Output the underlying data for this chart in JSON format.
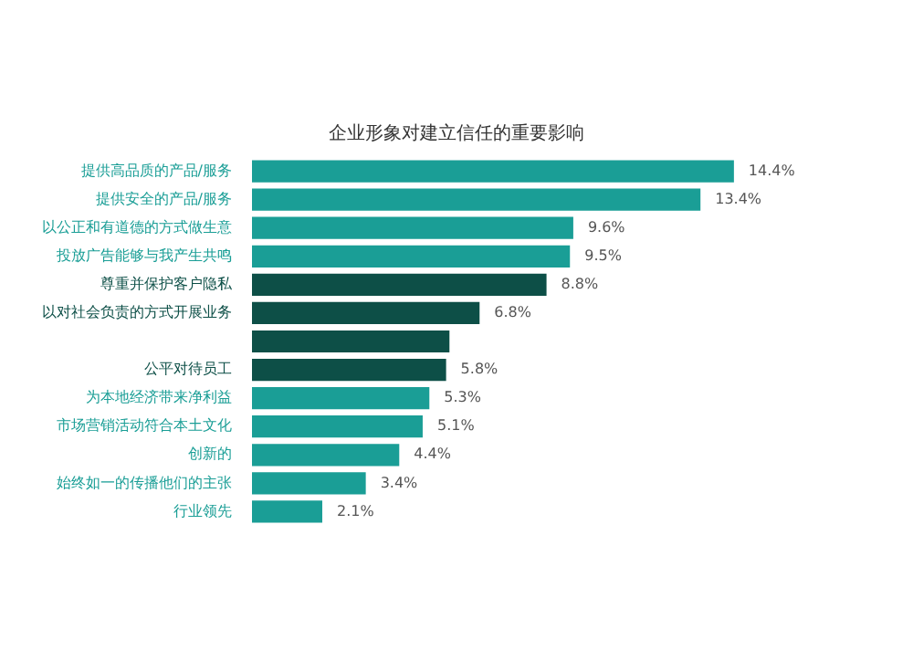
{
  "chart_data": {
    "type": "bar",
    "orientation": "horizontal",
    "title": "企业形象对建立信任的重要影响",
    "categories": [
      "提供高品质的产品/服务",
      "提供安全的产品/服务",
      "以公正和有道德的方式做生意",
      "投放广告能够与我产生共鸣",
      "尊重并保护客户隐私",
      "以对社会负责的方式开展业务",
      null,
      "公平对待员工",
      "为本地经济带来净利益",
      "市场营销活动符合本土文化",
      "创新的",
      "始终如一的传播他们的主张",
      "行业领先"
    ],
    "values": [
      14.4,
      13.4,
      9.6,
      9.5,
      8.8,
      6.8,
      5.9,
      5.8,
      5.3,
      5.1,
      4.4,
      3.4,
      2.1
    ],
    "colors": [
      "#1a9e96",
      "#1a9e96",
      "#1a9e96",
      "#1a9e96",
      "#0d4f47",
      "#0d4f47",
      "#0d4f47",
      "#0d4f47",
      "#1a9e96",
      "#1a9e96",
      "#1a9e96",
      "#1a9e96",
      "#1a9e96"
    ],
    "value_labels": [
      "14.4%",
      "13.4%",
      "9.6%",
      "9.5%",
      "8.8%",
      "6.8%",
      null,
      "5.8%",
      "5.3%",
      "5.1%",
      "4.4%",
      "3.4%",
      "2.1%"
    ],
    "legend": false
  }
}
